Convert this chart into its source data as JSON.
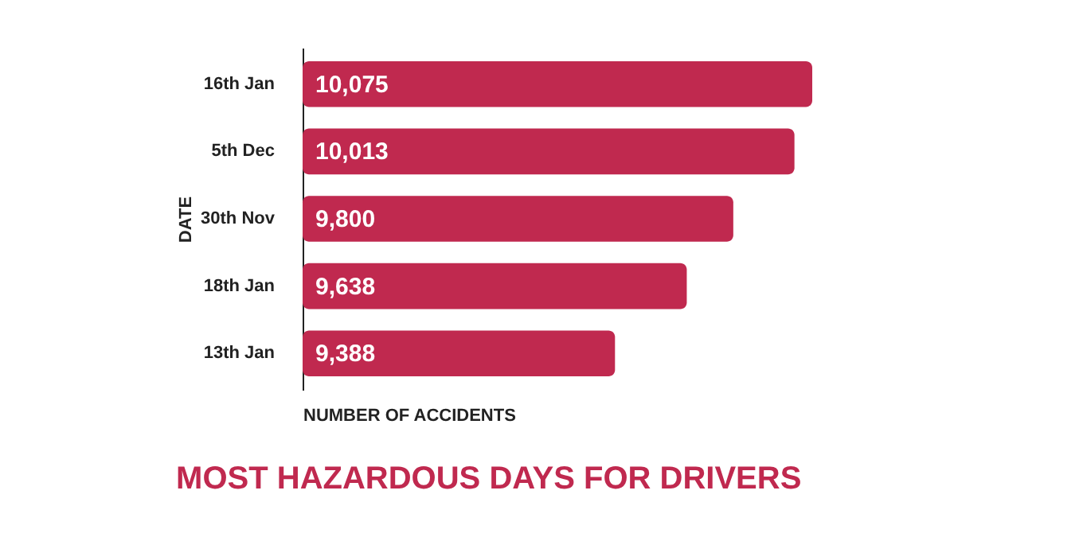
{
  "chart_data": {
    "type": "bar",
    "orientation": "horizontal",
    "title": "MOST HAZARDOUS DAYS FOR DRIVERS",
    "xlabel": "NUMBER OF ACCIDENTS",
    "ylabel": "DATE",
    "categories": [
      "16th Jan",
      "5th Dec",
      "30th Nov",
      "18th Jan",
      "13th Jan"
    ],
    "values": [
      10075,
      10013,
      9800,
      9638,
      9388
    ],
    "color": "#c0294f",
    "value_labels": [
      "10,075",
      "10,013",
      "9,800",
      "9,638",
      "9,388"
    ],
    "xlim": [
      8300,
      10075
    ],
    "tick_labels": "y"
  }
}
